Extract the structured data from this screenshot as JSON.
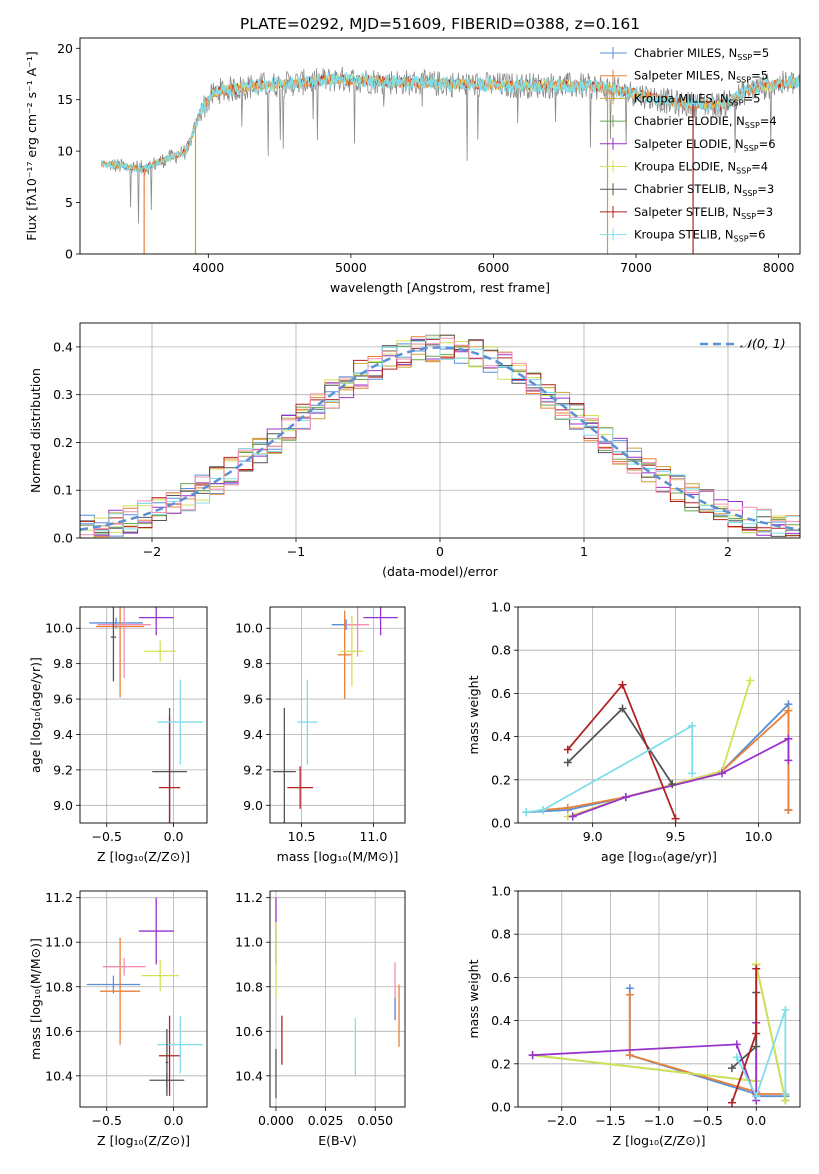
{
  "page_title": "PLATE=0292, MJD=51609, FIBERID=0388, z=0.161",
  "colors": {
    "chabrier_miles": "#5b8fd6",
    "salpeter_miles": "#e8803a",
    "kroupa_miles": "#c9a23a",
    "chabrier_elodie": "#6aa84f",
    "salpeter_elodie": "#9932cc",
    "kroupa_elodie": "#d4e157",
    "chabrier_stelib": "#555555",
    "salpeter_stelib": "#b22222",
    "kroupa_stelib": "#80deea",
    "pink": "#f48fb1",
    "spectrum_gray": "#8a8a8a",
    "normal_curve": "#5b8fd6",
    "grid": "#b0b0b0"
  },
  "chart_data": [
    {
      "id": "spectrum",
      "type": "line",
      "title": "PLATE=0292, MJD=51609, FIBERID=0388, z=0.161",
      "xlabel": "wavelength [Angstrom, rest frame]",
      "ylabel": "Flux [fλ10⁻¹⁷ erg cm⁻² s⁻¹ A⁻¹]",
      "xlim": [
        3100,
        8150
      ],
      "ylim": [
        0,
        21
      ],
      "xticks": [
        4000,
        5000,
        6000,
        7000,
        8000
      ],
      "yticks": [
        0,
        5,
        10,
        15,
        20
      ],
      "grid": false,
      "legend_position": "right",
      "legend": [
        {
          "label": "Chabrier MILES, N",
          "sub": "SSP",
          "suffix": "=5",
          "color_key": "chabrier_miles"
        },
        {
          "label": "Salpeter MILES, N",
          "sub": "SSP",
          "suffix": "=5",
          "color_key": "salpeter_miles"
        },
        {
          "label": "Kroupa MILES, N",
          "sub": "SSP",
          "suffix": "=5",
          "color_key": "kroupa_miles"
        },
        {
          "label": "Chabrier ELODIE, N",
          "sub": "SSP",
          "suffix": "=4",
          "color_key": "chabrier_elodie"
        },
        {
          "label": "Salpeter ELODIE, N",
          "sub": "SSP",
          "suffix": "=6",
          "color_key": "salpeter_elodie"
        },
        {
          "label": "Kroupa ELODIE, N",
          "sub": "SSP",
          "suffix": "=4",
          "color_key": "kroupa_elodie"
        },
        {
          "label": "Chabrier STELIB, N",
          "sub": "SSP",
          "suffix": "=3",
          "color_key": "chabrier_stelib"
        },
        {
          "label": "Salpeter STELIB, N",
          "sub": "SSP",
          "suffix": "=3",
          "color_key": "salpeter_stelib"
        },
        {
          "label": "Kroupa STELIB, N",
          "sub": "SSP",
          "suffix": "=6",
          "color_key": "kroupa_stelib"
        }
      ],
      "continuum": {
        "x": [
          3250,
          3400,
          3550,
          3700,
          3850,
          3950,
          4050,
          4300,
          4600,
          4900,
          5200,
          5500,
          5800,
          6100,
          6400,
          6700,
          7000,
          7300,
          7600,
          7800,
          8000,
          8150
        ],
        "y": [
          8.8,
          8.5,
          8.3,
          9.2,
          10.0,
          14.0,
          15.8,
          16.3,
          16.6,
          17.0,
          16.8,
          16.6,
          16.5,
          16.4,
          16.4,
          16.3,
          15.6,
          14.6,
          14.5,
          16.0,
          16.5,
          16.7
        ]
      },
      "absorption_features": [
        {
          "x": 3550,
          "y": 0
        },
        {
          "x": 3910,
          "y": 0
        },
        {
          "x": 6800,
          "y": 0
        },
        {
          "x": 7400,
          "y": 0
        }
      ]
    },
    {
      "id": "residuals",
      "type": "area",
      "xlabel": "(data-model)/error",
      "ylabel": "Normed distribution",
      "xlim": [
        -2.5,
        2.5
      ],
      "ylim": [
        0,
        0.45
      ],
      "xticks": [
        -2,
        -1,
        0,
        1,
        2
      ],
      "yticks": [
        0.0,
        0.1,
        0.2,
        0.3,
        0.4
      ],
      "grid": true,
      "legend_position": "top-right",
      "normal_label": "𝒩(0, 1)",
      "bin_width": 0.1
    },
    {
      "id": "age_vs_Z",
      "type": "scatter",
      "xlabel": "Z [log₁₀(Z/Z⊙)]",
      "ylabel": "age  [log₁₀(age/yr)]",
      "xlim": [
        -0.7,
        0.25
      ],
      "ylim": [
        8.9,
        10.12
      ],
      "xticks": [
        -0.5,
        0.0
      ],
      "yticks": [
        9.0,
        9.2,
        9.4,
        9.6,
        9.8,
        10.0
      ],
      "grid": true,
      "points": [
        {
          "x": -0.43,
          "y": 10.03,
          "xerr": 0.2,
          "yerr": 0.03,
          "color_key": "chabrier_miles"
        },
        {
          "x": -0.4,
          "y": 10.01,
          "xerr": 0.18,
          "yerr": 0.4,
          "color_key": "salpeter_miles"
        },
        {
          "x": -0.37,
          "y": 10.02,
          "xerr": 0.2,
          "yerr": 0.3,
          "color_key": "pink"
        },
        {
          "x": -0.13,
          "y": 10.06,
          "xerr": 0.13,
          "yerr": 0.1,
          "color_key": "salpeter_elodie"
        },
        {
          "x": -0.1,
          "y": 9.87,
          "xerr": 0.12,
          "yerr": 0.06,
          "color_key": "kroupa_elodie"
        },
        {
          "x": -0.03,
          "y": 9.19,
          "xerr": 0.13,
          "yerr": 0.36,
          "color_key": "chabrier_stelib"
        },
        {
          "x": -0.03,
          "y": 9.1,
          "xerr": 0.08,
          "yerr": 0.4,
          "color_key": "salpeter_stelib"
        },
        {
          "x": 0.05,
          "y": 9.47,
          "xerr": 0.17,
          "yerr": 0.24,
          "color_key": "kroupa_stelib"
        },
        {
          "x": -0.45,
          "y": 9.95,
          "xerr": 0.02,
          "yerr": 0.25,
          "color_key": "chabrier_stelib"
        }
      ]
    },
    {
      "id": "age_vs_mass",
      "type": "scatter",
      "xlabel": "mass [log₁₀(M/M⊙)]",
      "ylabel": "",
      "xlim": [
        10.28,
        11.22
      ],
      "ylim": [
        8.9,
        10.12
      ],
      "xticks": [
        10.5,
        11.0
      ],
      "yticks": [
        9.0,
        9.2,
        9.4,
        9.6,
        9.8,
        10.0
      ],
      "grid": true,
      "points": [
        {
          "x": 10.81,
          "y": 10.02,
          "xerr": 0.1,
          "yerr": 0.03,
          "color_key": "chabrier_miles"
        },
        {
          "x": 10.8,
          "y": 9.85,
          "xerr": 0.05,
          "yerr": 0.25,
          "color_key": "salpeter_miles"
        },
        {
          "x": 10.89,
          "y": 10.02,
          "xerr": 0.08,
          "yerr": 0.18,
          "color_key": "pink"
        },
        {
          "x": 11.05,
          "y": 10.06,
          "xerr": 0.12,
          "yerr": 0.1,
          "color_key": "salpeter_elodie"
        },
        {
          "x": 10.85,
          "y": 9.87,
          "xerr": 0.08,
          "yerr": 0.2,
          "color_key": "kroupa_elodie"
        },
        {
          "x": 10.38,
          "y": 9.19,
          "xerr": 0.08,
          "yerr": 0.36,
          "color_key": "chabrier_stelib"
        },
        {
          "x": 10.49,
          "y": 9.1,
          "xerr": 0.09,
          "yerr": 0.12,
          "color_key": "salpeter_stelib"
        },
        {
          "x": 10.54,
          "y": 9.47,
          "xerr": 0.07,
          "yerr": 0.24,
          "color_key": "kroupa_stelib"
        }
      ]
    },
    {
      "id": "mass_weight_vs_age",
      "type": "line",
      "xlabel": "age  [log₁₀(age/yr)]",
      "ylabel": "mass weight",
      "xlim": [
        8.55,
        10.25
      ],
      "ylim": [
        0,
        1
      ],
      "xticks": [
        9.0,
        9.5,
        10.0
      ],
      "yticks": [
        0.0,
        0.2,
        0.4,
        0.6,
        0.8,
        1.0
      ],
      "grid": true,
      "series": [
        {
          "color_key": "chabrier_miles",
          "x": [
            8.6,
            8.85,
            9.2,
            9.78,
            10.18,
            10.18
          ],
          "y": [
            0.05,
            0.06,
            0.12,
            0.24,
            0.55,
            0.06
          ]
        },
        {
          "color_key": "salpeter_miles",
          "x": [
            8.7,
            8.85,
            9.2,
            9.78,
            10.18,
            10.18
          ],
          "y": [
            0.06,
            0.07,
            0.12,
            0.24,
            0.52,
            0.06
          ]
        },
        {
          "color_key": "kroupa_elodie",
          "x": [
            8.85,
            9.2,
            9.78,
            9.95
          ],
          "y": [
            0.03,
            0.12,
            0.24,
            0.66
          ]
        },
        {
          "color_key": "salpeter_elodie",
          "x": [
            8.88,
            9.2,
            9.78,
            10.18,
            10.18
          ],
          "y": [
            0.03,
            0.12,
            0.23,
            0.39,
            0.29
          ]
        },
        {
          "color_key": "chabrier_stelib",
          "x": [
            8.85,
            9.18,
            9.48
          ],
          "y": [
            0.28,
            0.53,
            0.18
          ]
        },
        {
          "color_key": "salpeter_stelib",
          "x": [
            8.85,
            9.18,
            9.5
          ],
          "y": [
            0.34,
            0.64,
            0.02
          ]
        },
        {
          "color_key": "kroupa_stelib",
          "x": [
            8.6,
            8.7,
            9.6,
            9.6
          ],
          "y": [
            0.05,
            0.06,
            0.45,
            0.23
          ]
        }
      ]
    },
    {
      "id": "mass_vs_Z",
      "type": "scatter",
      "xlabel": "Z [log₁₀(Z/Z⊙)]",
      "ylabel": "mass [log₁₀(M/M⊙)]",
      "xlim": [
        -0.7,
        0.25
      ],
      "ylim": [
        10.26,
        11.23
      ],
      "xticks": [
        -0.5,
        0.0
      ],
      "yticks": [
        10.4,
        10.6,
        10.8,
        11.0,
        11.2
      ],
      "grid": true,
      "points": [
        {
          "x": -0.45,
          "y": 10.81,
          "xerr": 0.2,
          "yerr": 0.04,
          "color_key": "chabrier_miles"
        },
        {
          "x": -0.4,
          "y": 10.78,
          "xerr": 0.15,
          "yerr": 0.24,
          "color_key": "salpeter_miles"
        },
        {
          "x": -0.37,
          "y": 10.89,
          "xerr": 0.16,
          "yerr": 0.04,
          "color_key": "pink"
        },
        {
          "x": -0.13,
          "y": 11.05,
          "xerr": 0.13,
          "yerr": 0.15,
          "color_key": "salpeter_elodie"
        },
        {
          "x": -0.1,
          "y": 10.85,
          "xerr": 0.14,
          "yerr": 0.07,
          "color_key": "kroupa_elodie"
        },
        {
          "x": -0.05,
          "y": 10.38,
          "xerr": 0.13,
          "yerr": 0.03,
          "color_key": "chabrier_stelib"
        },
        {
          "x": -0.03,
          "y": 10.49,
          "xerr": 0.08,
          "yerr": 0.18,
          "color_key": "salpeter_stelib"
        },
        {
          "x": 0.05,
          "y": 10.54,
          "xerr": 0.17,
          "yerr": 0.13,
          "color_key": "kroupa_stelib"
        },
        {
          "x": -0.05,
          "y": 10.46,
          "xerr": 0.01,
          "yerr": 0.15,
          "color_key": "chabrier_stelib"
        }
      ]
    },
    {
      "id": "mass_vs_ebv",
      "type": "scatter",
      "xlabel": "E(B-V)",
      "ylabel": "",
      "xlim": [
        -0.003,
        0.065
      ],
      "ylim": [
        10.26,
        11.23
      ],
      "xticks": [
        0.0,
        0.025,
        0.05
      ],
      "xtick_labels": [
        "0.000",
        "0.025",
        "0.050"
      ],
      "yticks": [
        10.4,
        10.6,
        10.8,
        11.0,
        11.2
      ],
      "grid": true,
      "points": [
        {
          "x": 0.0,
          "y": 11.05,
          "xerr": 0,
          "yerr": 0.15,
          "color_key": "salpeter_elodie"
        },
        {
          "x": 0.0,
          "y": 10.92,
          "xerr": 0,
          "yerr": 0.17,
          "color_key": "kroupa_elodie"
        },
        {
          "x": 0.0,
          "y": 10.41,
          "xerr": 0,
          "yerr": 0.11,
          "color_key": "chabrier_stelib"
        },
        {
          "x": 0.003,
          "y": 10.56,
          "xerr": 0,
          "yerr": 0.11,
          "color_key": "salpeter_stelib"
        },
        {
          "x": 0.04,
          "y": 10.53,
          "xerr": 0,
          "yerr": 0.13,
          "color_key": "kroupa_stelib"
        },
        {
          "x": 0.06,
          "y": 10.78,
          "xerr": 0,
          "yerr": 0.13,
          "color_key": "pink"
        },
        {
          "x": 0.062,
          "y": 10.67,
          "xerr": 0,
          "yerr": 0.14,
          "color_key": "salpeter_miles"
        },
        {
          "x": 0.06,
          "y": 10.7,
          "xerr": 0,
          "yerr": 0.05,
          "color_key": "chabrier_miles"
        }
      ]
    },
    {
      "id": "mass_weight_vs_Z",
      "type": "line",
      "xlabel": "Z [log₁₀(Z/Z⊙)]",
      "ylabel": "mass weight",
      "xlim": [
        -2.45,
        0.45
      ],
      "ylim": [
        0,
        1
      ],
      "xticks": [
        -2.0,
        -1.5,
        -1.0,
        -0.5,
        0.0
      ],
      "yticks": [
        0.0,
        0.2,
        0.4,
        0.6,
        0.8,
        1.0
      ],
      "grid": true,
      "series": [
        {
          "color_key": "chabrier_miles",
          "x": [
            -1.3,
            -1.3,
            0.0,
            0.0,
            0.3
          ],
          "y": [
            0.55,
            0.24,
            0.06,
            0.05,
            0.05
          ]
        },
        {
          "color_key": "salpeter_miles",
          "x": [
            -1.3,
            -1.3,
            0.0,
            0.0,
            0.3
          ],
          "y": [
            0.52,
            0.24,
            0.07,
            0.06,
            0.06
          ]
        },
        {
          "color_key": "chabrier_elodie",
          "x": [
            -2.3,
            0.0,
            0.0,
            0.3
          ],
          "y": [
            0.24,
            0.12,
            0.66,
            0.03
          ]
        },
        {
          "color_key": "kroupa_elodie",
          "x": [
            -2.3,
            0.0,
            0.0,
            0.3
          ],
          "y": [
            0.24,
            0.12,
            0.66,
            0.03
          ]
        },
        {
          "color_key": "salpeter_elodie",
          "x": [
            -2.3,
            -0.2,
            0.0,
            0.0
          ],
          "y": [
            0.24,
            0.29,
            0.03,
            0.39
          ]
        },
        {
          "color_key": "chabrier_stelib",
          "x": [
            -0.25,
            0.0,
            0.0
          ],
          "y": [
            0.18,
            0.28,
            0.53
          ]
        },
        {
          "color_key": "salpeter_stelib",
          "x": [
            -0.25,
            0.0,
            0.0
          ],
          "y": [
            0.02,
            0.34,
            0.64
          ]
        },
        {
          "color_key": "kroupa_stelib",
          "x": [
            -0.2,
            0.0,
            0.3,
            0.3
          ],
          "y": [
            0.23,
            0.05,
            0.45,
            0.06
          ]
        }
      ]
    }
  ]
}
